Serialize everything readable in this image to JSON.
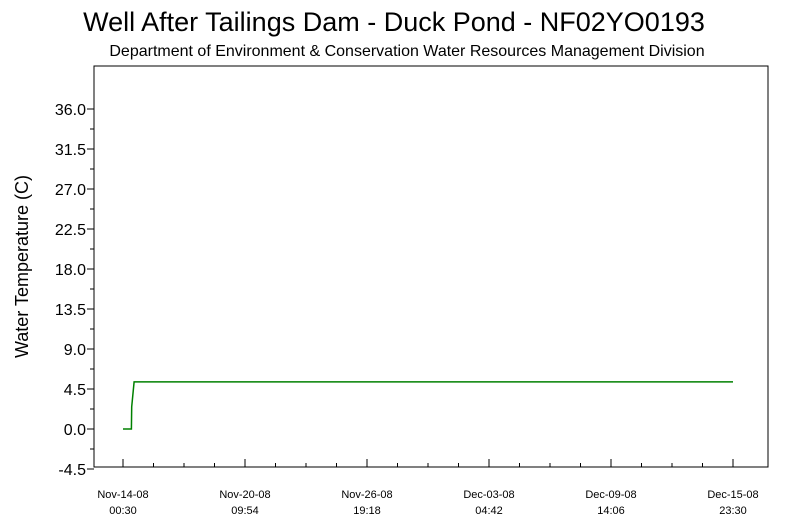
{
  "chart_data": {
    "type": "line",
    "title": "Well After Tailings Dam - Duck Pond  - NF02YO0193",
    "subtitle": "Department of Environment & Conservation Water Resources Management Division",
    "xlabel": "",
    "ylabel": "Water Temperature (C)",
    "ylim": [
      -4.5,
      36.0
    ],
    "yticks": [
      "-4.5",
      "0.0",
      "4.5",
      "9.0",
      "13.5",
      "18.0",
      "22.5",
      "27.0",
      "31.5",
      "36.0"
    ],
    "xticks": [
      {
        "date": "Nov-14-08",
        "time": "00:30"
      },
      {
        "date": "Nov-20-08",
        "time": "09:54"
      },
      {
        "date": "Nov-26-08",
        "time": "19:18"
      },
      {
        "date": "Dec-03-08",
        "time": "04:42"
      },
      {
        "date": "Dec-09-08",
        "time": "14:06"
      },
      {
        "date": "Dec-15-08",
        "time": "23:30"
      }
    ],
    "grid": false,
    "series": [
      {
        "color": "#008000",
        "points": [
          {
            "x": "2008-11-14 00:30",
            "y": 0.0
          },
          {
            "x": "2008-11-14 11:00",
            "y": 0.0
          },
          {
            "x": "2008-11-14 11:30",
            "y": 2.5
          },
          {
            "x": "2008-11-14 14:30",
            "y": 5.3
          },
          {
            "x": "2008-11-15 12:00",
            "y": 5.3
          },
          {
            "x": "2008-11-25 00:00",
            "y": 5.3
          },
          {
            "x": "2008-12-05 00:00",
            "y": 5.3
          },
          {
            "x": "2008-12-15 23:30",
            "y": 5.3
          }
        ]
      }
    ]
  }
}
